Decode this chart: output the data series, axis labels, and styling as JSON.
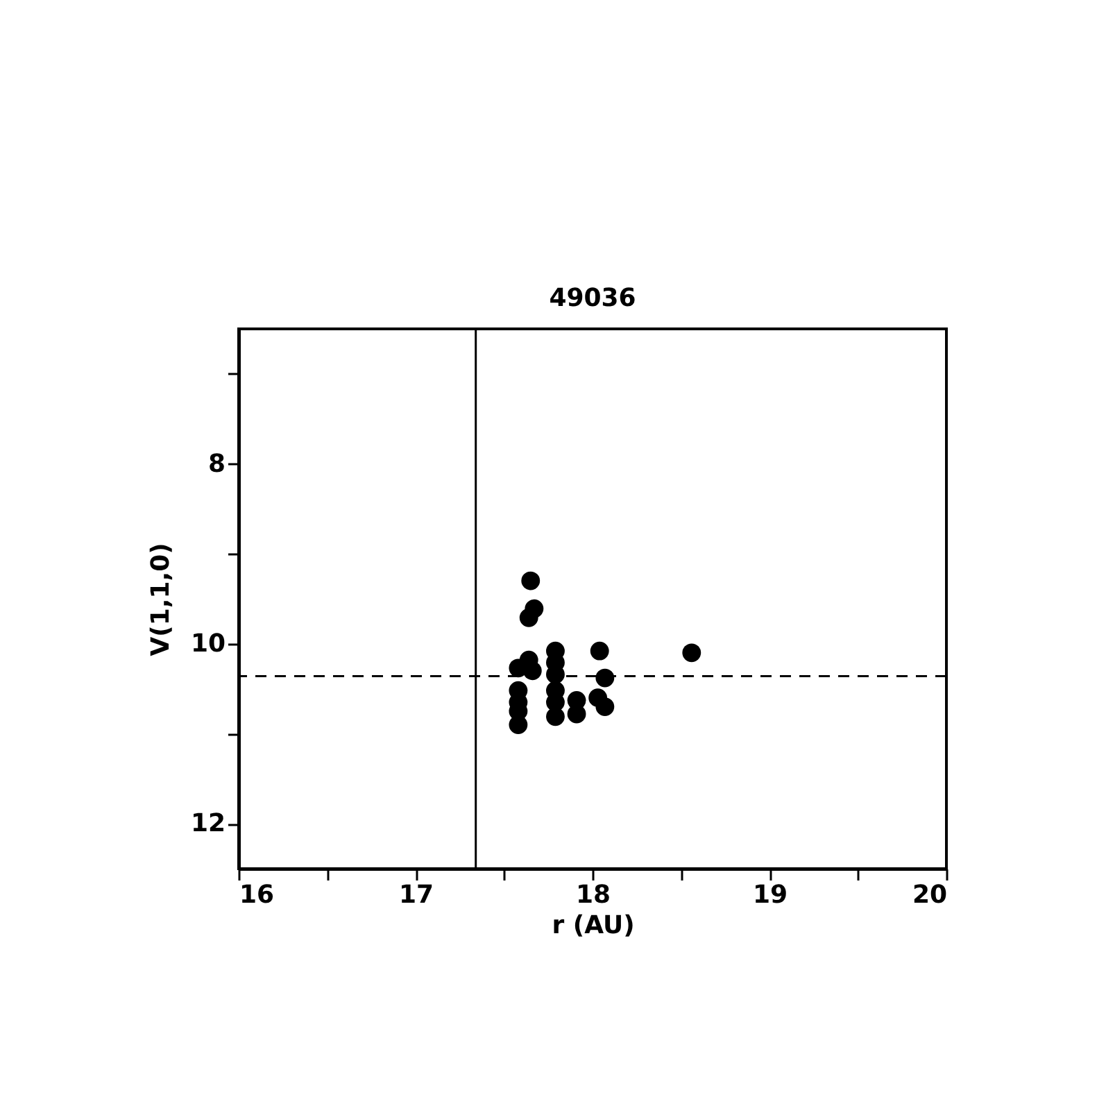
{
  "chart_data": {
    "type": "scatter",
    "title": "49036",
    "xlabel": "r (AU)",
    "ylabel": "V(1,1,0)",
    "xlim": [
      16,
      20
    ],
    "ylim": [
      12.5,
      6.5
    ],
    "xticks": [
      16,
      {
        "value": 16.5,
        "label": null
      },
      17,
      {
        "value": 17.5,
        "label": null
      },
      18,
      {
        "value": 18.5,
        "label": null
      },
      19,
      {
        "value": 19.5,
        "label": null
      },
      20
    ],
    "yticks": [
      {
        "value": 7,
        "label": null
      },
      8,
      {
        "value": 9,
        "label": null
      },
      10,
      {
        "value": 11,
        "label": null
      },
      12
    ],
    "x": [
      17.65,
      17.67,
      17.64,
      17.64,
      17.58,
      17.66,
      17.58,
      17.58,
      17.58,
      17.58,
      17.79,
      17.79,
      17.79,
      17.79,
      17.79,
      17.79,
      17.91,
      17.91,
      18.04,
      18.07,
      18.03,
      18.07,
      18.56
    ],
    "series": [
      {
        "color": "#000000",
        "values": [
          9.3,
          9.61,
          9.71,
          10.18,
          10.27,
          10.3,
          10.52,
          10.65,
          10.75,
          10.9,
          10.08,
          10.21,
          10.34,
          10.52,
          10.65,
          10.81,
          10.63,
          10.78,
          10.08,
          10.38,
          10.6,
          10.7,
          10.1
        ]
      }
    ],
    "ref_lines": [
      {
        "axis": "x",
        "value": 17.34,
        "color": "#000000",
        "line_style": "solid"
      },
      {
        "axis": "y",
        "value": 10.36,
        "color": "#000000",
        "line_style": "dashed"
      }
    ],
    "marker": "circle",
    "grid": false
  }
}
